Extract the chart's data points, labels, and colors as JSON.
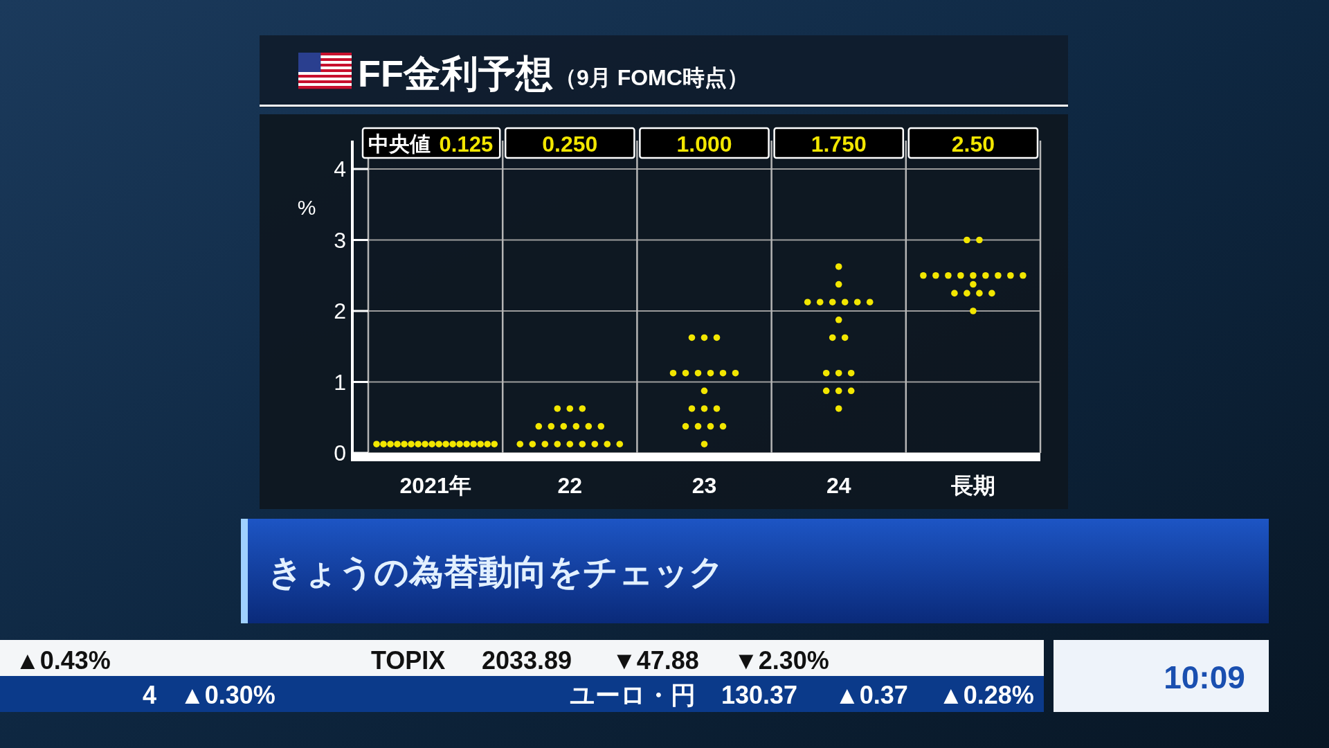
{
  "chart_data": {
    "type": "scatter",
    "title": "FF金利予想",
    "subtitle": "（9月 FOMC時点）",
    "ylabel": "%",
    "categories": [
      "2021年",
      "22",
      "23",
      "24",
      "長期"
    ],
    "series": [
      {
        "color": "#f2e600",
        "x": [
          "2021年",
          "2021年",
          "2021年",
          "2021年",
          "2021年",
          "2021年",
          "2021年",
          "2021年",
          "2021年",
          "2021年",
          "2021年",
          "2021年",
          "2021年",
          "2021年",
          "2021年",
          "2021年",
          "2021年",
          "2021年",
          "22",
          "22",
          "22",
          "22",
          "22",
          "22",
          "22",
          "22",
          "22",
          "22",
          "22",
          "22",
          "22",
          "22",
          "22",
          "22",
          "22",
          "22",
          "23",
          "23",
          "23",
          "23",
          "23",
          "23",
          "23",
          "23",
          "23",
          "23",
          "23",
          "23",
          "23",
          "23",
          "23",
          "23",
          "23",
          "23",
          "24",
          "24",
          "24",
          "24",
          "24",
          "24",
          "24",
          "24",
          "24",
          "24",
          "24",
          "24",
          "24",
          "24",
          "24",
          "24",
          "24",
          "24",
          "長期",
          "長期",
          "長期",
          "長期",
          "長期",
          "長期",
          "長期",
          "長期",
          "長期",
          "長期",
          "長期",
          "長期",
          "長期",
          "長期",
          "長期",
          "長期",
          "長期"
        ],
        "values": [
          0.125,
          0.125,
          0.125,
          0.125,
          0.125,
          0.125,
          0.125,
          0.125,
          0.125,
          0.125,
          0.125,
          0.125,
          0.125,
          0.125,
          0.125,
          0.125,
          0.125,
          0.125,
          0.125,
          0.125,
          0.125,
          0.125,
          0.125,
          0.125,
          0.125,
          0.125,
          0.125,
          0.375,
          0.375,
          0.375,
          0.375,
          0.375,
          0.375,
          0.625,
          0.625,
          0.625,
          0.125,
          0.375,
          0.375,
          0.375,
          0.375,
          0.625,
          0.625,
          0.625,
          0.875,
          1.125,
          1.125,
          1.125,
          1.125,
          1.125,
          1.125,
          1.625,
          1.625,
          1.625,
          0.625,
          0.875,
          0.875,
          0.875,
          1.125,
          1.125,
          1.125,
          1.625,
          1.625,
          1.875,
          2.125,
          2.125,
          2.125,
          2.125,
          2.125,
          2.125,
          2.375,
          2.625,
          2.0,
          2.25,
          2.25,
          2.25,
          2.25,
          2.375,
          2.5,
          2.5,
          2.5,
          2.5,
          2.5,
          2.5,
          2.5,
          2.5,
          2.5,
          3.0,
          3.0
        ]
      }
    ],
    "ylim": [
      0,
      4.4
    ],
    "yticks": [
      0,
      1,
      2,
      3,
      4
    ],
    "grid": true,
    "marker": "circle",
    "annotations": [
      "中央値",
      "0.125",
      "0.250",
      "1.000",
      "1.750",
      "2.50",
      "きょうの為替動向をチェック",
      "▲0.43%",
      "TOPIX",
      "2033.89",
      "▼47.88",
      "▼2.30%",
      "4",
      "▲0.30%",
      "ユーロ・円",
      "130.37",
      "▲0.37",
      "▲0.28%",
      "10:09"
    ]
  }
}
